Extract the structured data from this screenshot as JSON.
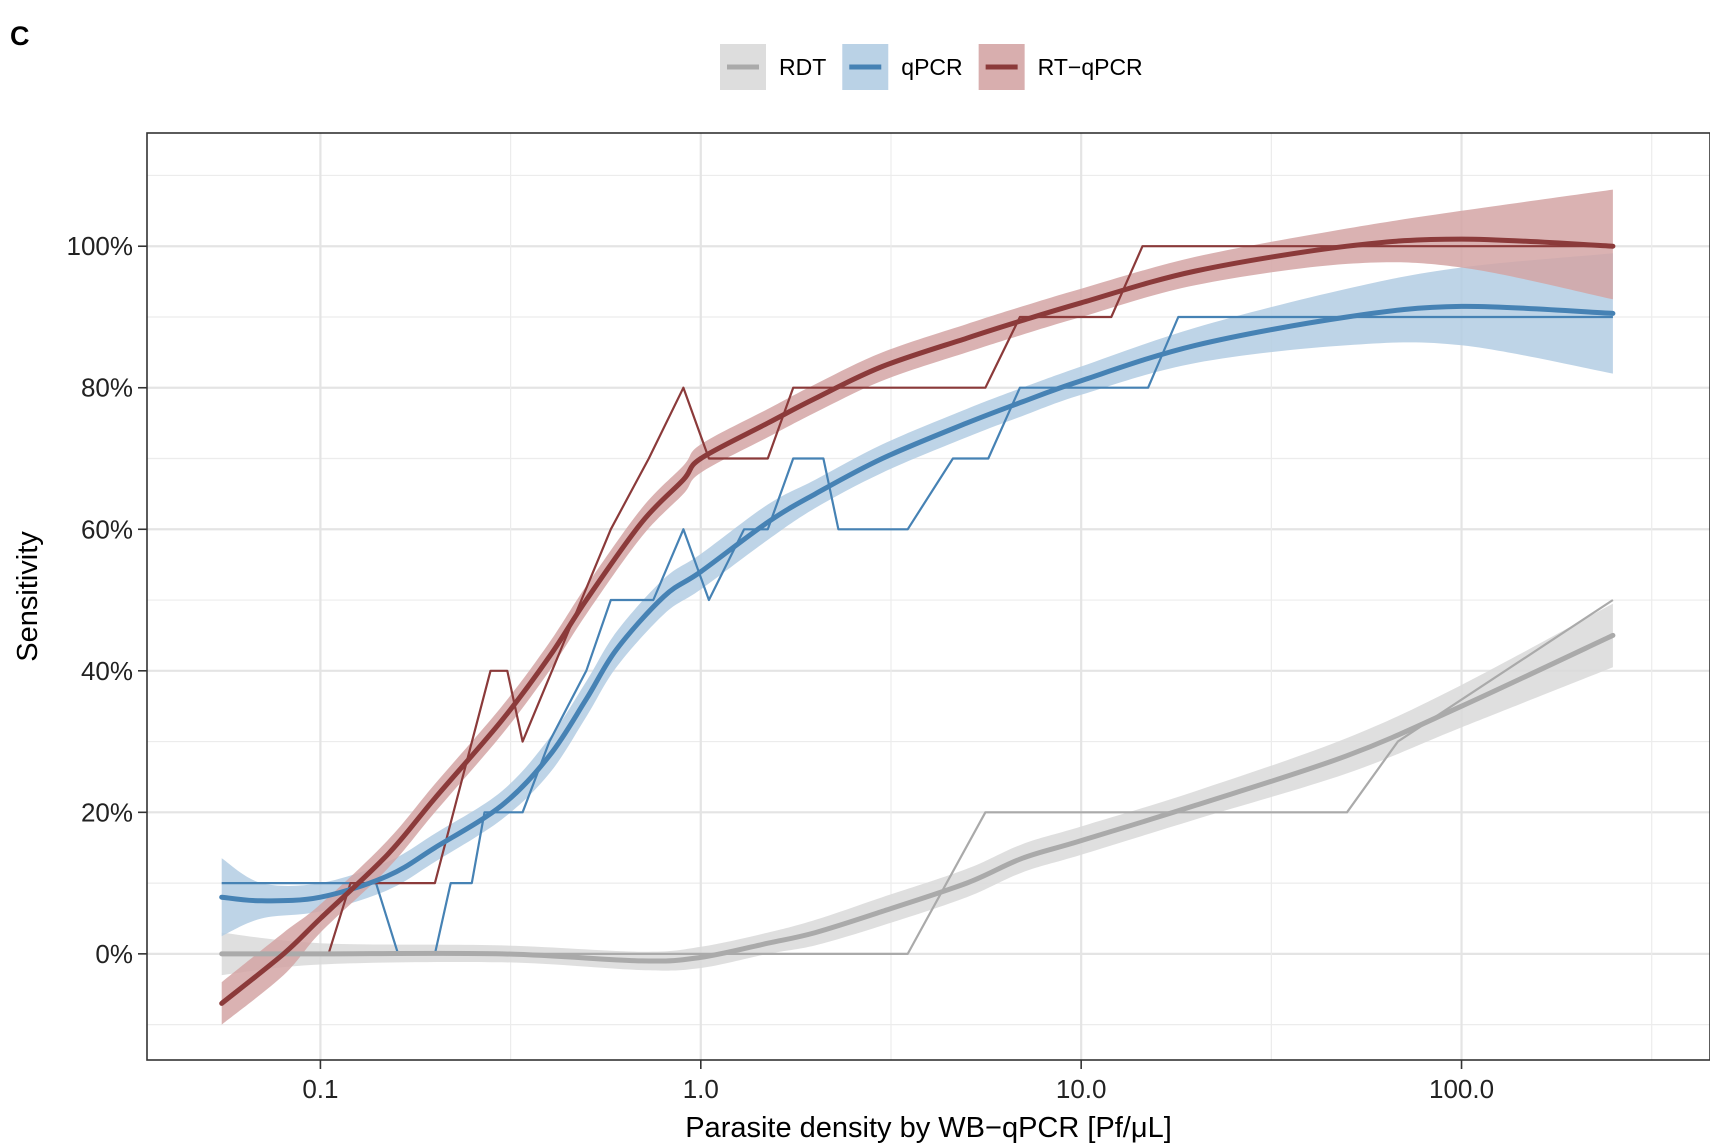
{
  "panel_label": "C",
  "chart_data": {
    "type": "line",
    "title": "",
    "xlabel": "Parasite density by WB−qPCR [Pf/μL]",
    "ylabel": "Sensitivity",
    "x_scale": "log10",
    "xlim": [
      0.035,
      450
    ],
    "ylim": [
      -15,
      116
    ],
    "x_ticks": [
      0.1,
      1,
      10,
      100
    ],
    "x_tick_labels": [
      "0.1",
      "1.0",
      "10.0",
      "100.0"
    ],
    "y_ticks": [
      0,
      20,
      40,
      60,
      80,
      100
    ],
    "y_tick_labels": [
      "0%",
      "20%",
      "40%",
      "60%",
      "80%",
      "100%"
    ],
    "grid": true,
    "legend_position": "top",
    "series": [
      {
        "name": "RDT",
        "color": "#aaaaaa",
        "band_color": "#d9d9d9",
        "empirical": {
          "x": [
            0.055,
            3.5,
            5.6,
            50,
            68,
            250
          ],
          "y": [
            0,
            0,
            20,
            20,
            30,
            50
          ]
        },
        "fit": {
          "x": [
            0.055,
            0.1,
            0.3,
            0.7,
            1.0,
            1.5,
            2.0,
            3.0,
            5.0,
            7.0,
            10,
            20,
            50,
            100,
            250
          ],
          "y": [
            0,
            0,
            0,
            -1,
            -0.5,
            1.5,
            3,
            6,
            10,
            13.5,
            16,
            21,
            28,
            35,
            45
          ],
          "lower": [
            -3,
            -1.5,
            -1.2,
            -2.3,
            -2,
            0,
            1.2,
            4,
            8,
            11.5,
            14,
            19,
            25.5,
            32,
            40.5
          ],
          "upper": [
            3,
            1.5,
            1.2,
            0.3,
            1,
            3,
            4.8,
            8,
            12,
            15.5,
            18,
            23,
            30.5,
            38,
            49.5
          ]
        }
      },
      {
        "name": "qPCR",
        "color": "#4682b4",
        "band_color": "#b3cde3",
        "empirical": {
          "x": [
            0.055,
            0.14,
            0.16,
            0.2,
            0.22,
            0.25,
            0.27,
            0.34,
            0.4,
            0.5,
            0.58,
            0.75,
            0.9,
            1.05,
            1.3,
            1.5,
            1.75,
            2.1,
            2.3,
            3.5,
            4.6,
            5.7,
            6.9,
            15,
            18,
            250
          ],
          "y": [
            10,
            10,
            0,
            0,
            10,
            10,
            20,
            20,
            30,
            40,
            50,
            50,
            60,
            50,
            60,
            60,
            70,
            70,
            60,
            60,
            70,
            70,
            80,
            80,
            90,
            90
          ]
        },
        "fit": {
          "x": [
            0.055,
            0.07,
            0.1,
            0.15,
            0.2,
            0.3,
            0.4,
            0.5,
            0.6,
            0.8,
            1.0,
            1.5,
            2.0,
            3.0,
            5.0,
            7.0,
            10,
            20,
            50,
            100,
            250
          ],
          "y": [
            8,
            7.5,
            8,
            11,
            15,
            21,
            28,
            36,
            43,
            50.5,
            54,
            61,
            65,
            70,
            75,
            78,
            81,
            86,
            90,
            91.5,
            90.5
          ],
          "lower": [
            2.5,
            5,
            6,
            9,
            13,
            19,
            25.5,
            33.5,
            40.5,
            48,
            51.5,
            58.5,
            63,
            68,
            73,
            76,
            79,
            83.5,
            86,
            86,
            82
          ],
          "upper": [
            13.5,
            10,
            10,
            13,
            17,
            23,
            30.5,
            38.5,
            45.5,
            53,
            56.5,
            63.5,
            67,
            72,
            77,
            80,
            83,
            88.5,
            94,
            97,
            99
          ]
        }
      },
      {
        "name": "RT−qPCR",
        "color": "#8b3a3a",
        "band_color": "#d4a5a5",
        "empirical": {
          "x": [
            0.055,
            0.105,
            0.12,
            0.2,
            0.28,
            0.31,
            0.34,
            0.58,
            0.73,
            0.9,
            1.05,
            1.5,
            1.75,
            5.6,
            6.9,
            12,
            14.5,
            250
          ],
          "y": [
            0,
            0,
            10,
            10,
            40,
            40,
            30,
            60,
            70,
            80,
            70,
            70,
            80,
            80,
            90,
            90,
            100,
            100
          ]
        },
        "fit": {
          "x": [
            0.055,
            0.08,
            0.1,
            0.15,
            0.2,
            0.3,
            0.4,
            0.5,
            0.7,
            0.9,
            1.0,
            1.5,
            2.0,
            3.0,
            5.0,
            7.0,
            10,
            20,
            50,
            100,
            250
          ],
          "y": [
            -7,
            0,
            5,
            14,
            22,
            33,
            42,
            50,
            61,
            67,
            70,
            75,
            78.5,
            83,
            87,
            89.5,
            92,
            96.5,
            100,
            101,
            100
          ],
          "lower": [
            -10,
            -3,
            3,
            12,
            20,
            31,
            40,
            48,
            59,
            65,
            68,
            73,
            76.5,
            81,
            85,
            87.5,
            90,
            94.5,
            97.5,
            97,
            92.5
          ],
          "upper": [
            -4,
            3,
            7,
            16,
            24,
            35,
            44,
            52,
            63,
            69,
            72,
            77,
            80.5,
            85,
            89,
            91.5,
            94,
            98.5,
            102.5,
            105,
            108
          ]
        }
      }
    ]
  }
}
